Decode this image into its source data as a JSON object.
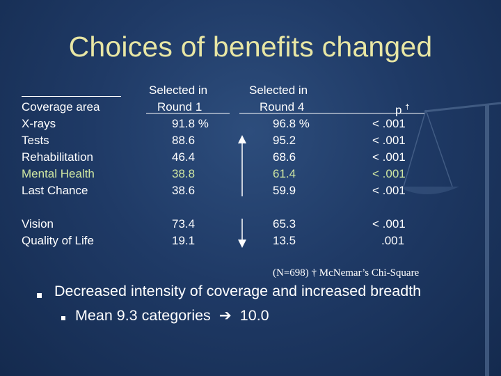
{
  "slide": {
    "title": "Choices of benefits changed",
    "headers": {
      "col1": "Coverage area",
      "col2_line1": "Selected in",
      "col2_line2": "Round 1",
      "col3_line1": "Selected in",
      "col3_line2": "Round 4",
      "col4": "p",
      "col4_mark": "†"
    },
    "rows": [
      {
        "area": "X-rays",
        "round1": "91.8 %",
        "round4": "96.8 %",
        "p": "< .001"
      },
      {
        "area": "Tests",
        "round1": "88.6",
        "round4": "95.2",
        "p": "< .001"
      },
      {
        "area": "Rehabilitation",
        "round1": "46.4",
        "round4": "68.6",
        "p": "< .001"
      },
      {
        "area": "Mental Health",
        "round1": "38.8",
        "round4": "61.4",
        "p": "< .001"
      },
      {
        "area": "Last Chance",
        "round1": "38.6",
        "round4": "59.9",
        "p": "< .001"
      },
      {
        "area": "Vision",
        "round1": "73.4",
        "round4": "65.3",
        "p": "< .001"
      },
      {
        "area": "Quality of Life",
        "round1": "19.1",
        "round4": "13.5",
        "p": ".001"
      }
    ],
    "footnote": "(N=698) † McNemar’s Chi-Square",
    "bullet_main": "Decreased intensity of coverage and increased breadth",
    "bullet_sub_text": "Mean 9.3 categories",
    "bullet_sub_arrow": "➔",
    "bullet_sub_value": "10.0"
  },
  "colors": {
    "background": "#1f3a66",
    "title": "#e8e6a4",
    "highlight_row": "#cfe6a2",
    "text": "#ffffff"
  }
}
